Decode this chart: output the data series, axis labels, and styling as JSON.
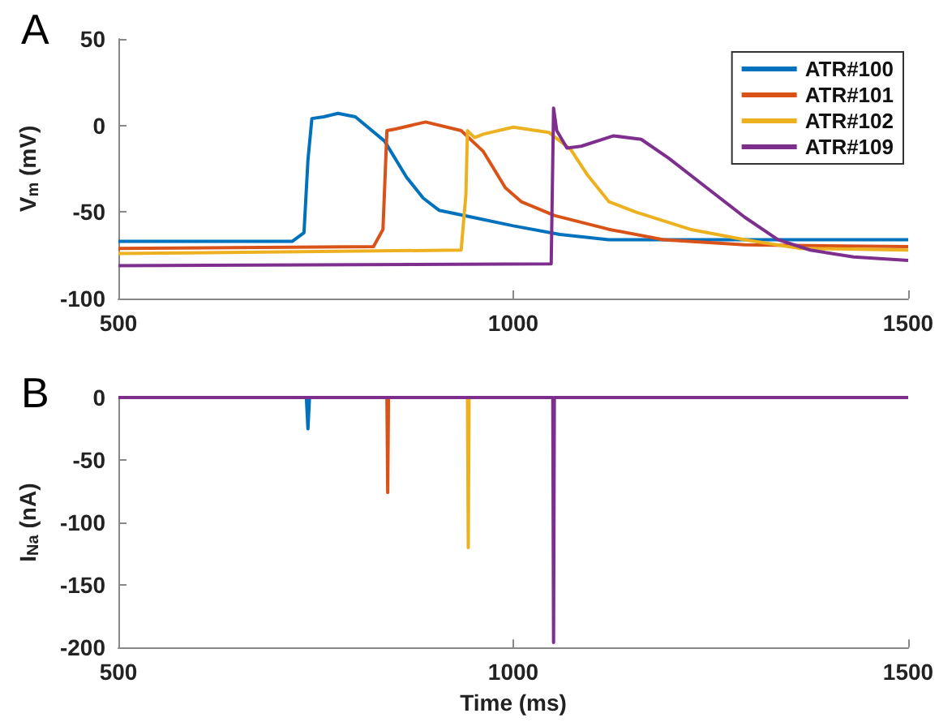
{
  "chart_data": [
    {
      "type": "line",
      "title": "A",
      "ylabel": "V$_{m}$ (mV)",
      "xlim": [
        500,
        1500
      ],
      "xticks": [
        500,
        1000,
        1500
      ],
      "ylim": [
        -100,
        50
      ],
      "yticks": [
        -100,
        -50,
        0,
        50
      ],
      "legend": "top right",
      "line_style": "solid",
      "series": [
        {
          "name": "ATR#100",
          "color": "#0072bd",
          "x": [
            500,
            720,
            735,
            740,
            745,
            760,
            778,
            800,
            837,
            865,
            886,
            906,
            948,
            1000,
            1059,
            1121,
            1200,
            1500
          ],
          "values": [
            -67,
            -67,
            -62,
            -20,
            4,
            5,
            7,
            5,
            -9,
            -30,
            -42,
            -49,
            -53,
            -58,
            -63,
            -66,
            -66,
            -66
          ]
        },
        {
          "name": "ATR#101",
          "color": "#d95319",
          "x": [
            500,
            823,
            835,
            840,
            851,
            889,
            934,
            962,
            990,
            1010,
            1052,
            1121,
            1190,
            1293,
            1500
          ],
          "values": [
            -71,
            -70,
            -60,
            -3,
            -2,
            2,
            -3,
            -15,
            -36,
            -44,
            -52,
            -60,
            -66,
            -69,
            -70
          ]
        },
        {
          "name": "ATR#102",
          "color": "#edb120",
          "x": [
            500,
            934,
            940,
            942,
            951,
            962,
            1000,
            1045,
            1073,
            1093,
            1121,
            1155,
            1224,
            1293,
            1362,
            1500
          ],
          "values": [
            -74,
            -72,
            -40,
            -3,
            -7,
            -5,
            -1,
            -4,
            -14,
            -28,
            -44,
            -50,
            -60,
            -66,
            -71,
            -72
          ]
        },
        {
          "name": "ATR#109",
          "color": "#7e2f8e",
          "x": [
            500,
            1048,
            1051,
            1055,
            1068,
            1086,
            1127,
            1162,
            1197,
            1245,
            1293,
            1335,
            1376,
            1431,
            1500
          ],
          "values": [
            -81,
            -80,
            10,
            -3,
            -13,
            -12,
            -6,
            -8,
            -19,
            -36,
            -53,
            -66,
            -72,
            -76,
            -78
          ]
        }
      ]
    },
    {
      "type": "line",
      "title": "B",
      "xlabel": "Time (ms)",
      "ylabel": "I$_{Na}$ (nA)",
      "xlim": [
        500,
        1500
      ],
      "xticks": [
        500,
        1000,
        1500
      ],
      "ylim": [
        -200,
        0
      ],
      "yticks": [
        -200,
        -150,
        -100,
        -50,
        0
      ],
      "line_style": "solid",
      "series": [
        {
          "color": "#0072bd",
          "x": [
            738,
            740,
            742
          ],
          "values": [
            0,
            -25,
            0
          ]
        },
        {
          "color": "#d95319",
          "x": [
            840,
            841,
            842
          ],
          "values": [
            0,
            -76,
            0
          ]
        },
        {
          "color": "#edb120",
          "x": [
            942,
            943,
            944
          ],
          "values": [
            0,
            -120,
            0
          ]
        },
        {
          "color": "#7e2f8e",
          "x": [
            500,
            1050,
            1051,
            1052,
            1500
          ],
          "values": [
            0,
            0,
            -196,
            0,
            0
          ]
        }
      ]
    }
  ]
}
